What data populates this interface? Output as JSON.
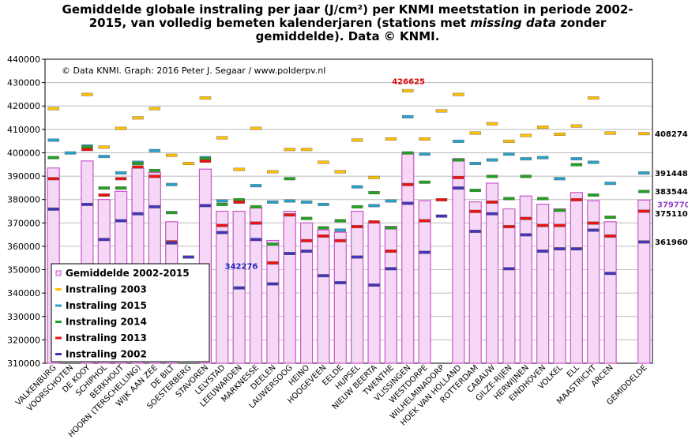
{
  "chart_data": {
    "type": "bar",
    "title": {
      "part1": "Gemiddelde globale instraling per jaar (J/cm²) per KNMI meetstation in periode 2002-2015, van volledig bemeten kalenderjaren (stations met ",
      "italic": "missing data",
      "part2": " zonder gemiddelde). Data © KNMI."
    },
    "credit": "© Data KNMI. Graph: 2016 Peter J. Segaar / www.polderpv.nl",
    "ylim": [
      310000,
      440000
    ],
    "yticks": [
      310000,
      320000,
      330000,
      340000,
      350000,
      360000,
      370000,
      380000,
      390000,
      400000,
      410000,
      420000,
      430000,
      440000
    ],
    "grid": "horizontal",
    "legend_position": "lower-left",
    "categories": [
      "VALKENBURG",
      "VOORSCHOTEN",
      "DE KOOY",
      "SCHIPHOL",
      "BERKHOUT",
      "HOORN (TERSCHELLING)",
      "WIJK AAN ZEE",
      "DE BILT",
      "SOESTERBERG",
      "STAVOREN",
      "LELYSTAD",
      "LEEUWARDEN",
      "MARKNESSE",
      "DEELEN",
      "LAUWERSOOG",
      "HEINO",
      "HOOGEVEEN",
      "EELDE",
      "HUPSEL",
      "NIEUW BEERTA",
      "TWENTHE",
      "VLISSINGEN",
      "WESTDORPE",
      "WILHELMINADORP",
      "HOEK VAN HOLLAND",
      "ROTTERDAM",
      "CABAUW",
      "GILZE-RIJEN",
      "HERWIJNEN",
      "EINDHOVEN",
      "VOLKEL",
      "ELL",
      "MAASTRICHT",
      "ARCEN",
      "",
      "GEMIDDELDE"
    ],
    "series": [
      {
        "name": "Gemiddelde 2002-2015",
        "color": "#cc55cc",
        "fill": "#f5d8f5",
        "values": [
          393500,
          null,
          396500,
          380000,
          383500,
          393500,
          391500,
          370500,
          null,
          393000,
          375000,
          375000,
          376500,
          362500,
          375000,
          370000,
          367000,
          366000,
          375000,
          370000,
          368500,
          400000,
          379500,
          null,
          397500,
          379000,
          387000,
          376000,
          381500,
          378000,
          376000,
          383000,
          379500,
          370500,
          null,
          379770
        ]
      },
      {
        "name": "Instraling 2003",
        "color": "#ffc000",
        "values": [
          419000,
          null,
          425000,
          402500,
          410500,
          415000,
          419000,
          399000,
          395500,
          423500,
          406500,
          393000,
          410500,
          392000,
          401500,
          401500,
          396000,
          392000,
          405500,
          389500,
          406000,
          426625,
          406000,
          418000,
          425000,
          408500,
          412500,
          405000,
          407500,
          411000,
          408000,
          411500,
          423500,
          408500,
          null,
          408274
        ]
      },
      {
        "name": "Instraling 2015",
        "color": "#2aa1c8",
        "values": [
          405500,
          400000,
          403000,
          398500,
          391500,
          396000,
          401000,
          386500,
          null,
          398000,
          379500,
          379500,
          386000,
          379000,
          379500,
          379000,
          378000,
          367000,
          385500,
          377500,
          379500,
          415500,
          399500,
          null,
          405000,
          395500,
          397000,
          399500,
          397500,
          398000,
          389000,
          397500,
          396000,
          387000,
          null,
          391448
        ]
      },
      {
        "name": "Instraling 2014",
        "color": "#22a022",
        "values": [
          398000,
          null,
          402500,
          385000,
          385000,
          395500,
          392500,
          374500,
          null,
          397500,
          378000,
          380000,
          377000,
          361000,
          389000,
          372000,
          368000,
          371000,
          377000,
          383000,
          368000,
          400000,
          387500,
          null,
          397000,
          384000,
          390000,
          380500,
          390000,
          380500,
          375500,
          395000,
          382000,
          372500,
          null,
          383544
        ]
      },
      {
        "name": "Instraling 2013",
        "color": "#ee1111",
        "values": [
          389000,
          null,
          401500,
          382000,
          389000,
          394000,
          390000,
          362000,
          null,
          396500,
          369000,
          379000,
          370000,
          353000,
          373500,
          362500,
          364500,
          362500,
          368500,
          370500,
          358000,
          386500,
          371000,
          380000,
          389500,
          375000,
          379000,
          368500,
          372000,
          369000,
          369000,
          380000,
          370000,
          364500,
          null,
          375110
        ]
      },
      {
        "name": "Instraling 2002",
        "color": "#4433bb",
        "values": [
          376000,
          null,
          378000,
          363000,
          371000,
          374000,
          377000,
          361500,
          355500,
          377500,
          366000,
          342276,
          363000,
          344000,
          357000,
          358000,
          347500,
          344500,
          355500,
          343500,
          350500,
          378500,
          357500,
          373000,
          385000,
          366500,
          374000,
          350500,
          365000,
          358000,
          359000,
          359000,
          367000,
          348500,
          null,
          361960
        ]
      }
    ],
    "annotations": [
      {
        "text": "426625",
        "color": "#dd0000"
      },
      {
        "text": "342276",
        "color": "#2222bb"
      },
      {
        "text": "408274",
        "color": "#000000"
      },
      {
        "text": "391448",
        "color": "#000000"
      },
      {
        "text": "383544",
        "color": "#000000"
      },
      {
        "text": "379770",
        "color": "#9944cc"
      },
      {
        "text": "375110",
        "color": "#000000"
      },
      {
        "text": "361960",
        "color": "#000000"
      }
    ]
  }
}
